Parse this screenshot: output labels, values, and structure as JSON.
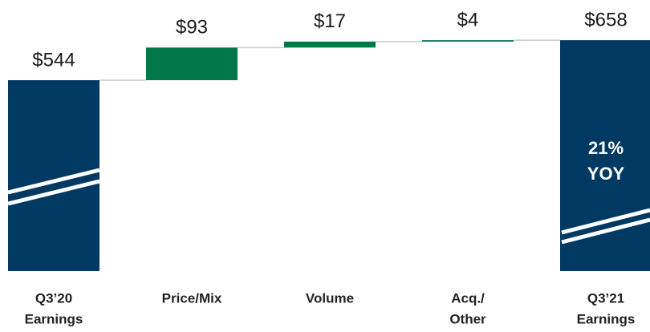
{
  "chart_data": {
    "type": "waterfall",
    "categories": [
      [
        "Q3’20",
        "Earnings"
      ],
      [
        "Price/Mix"
      ],
      [
        "Volume"
      ],
      [
        "Acq./",
        "Other"
      ],
      [
        "Q3’21",
        "Earnings"
      ]
    ],
    "values": [
      544,
      93,
      17,
      4,
      658
    ],
    "value_labels": [
      "$544",
      "$93",
      "$17",
      "$4",
      "$658"
    ],
    "colors": [
      "#003a63",
      "#00784a",
      "#00784a",
      "#00784a",
      "#003a63"
    ],
    "ylim": [
      0,
      700
    ],
    "annotations": [
      "21%",
      "YOY"
    ]
  }
}
